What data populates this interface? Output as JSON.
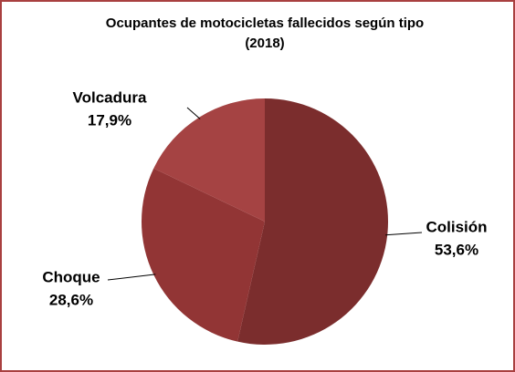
{
  "chart_data": {
    "type": "pie",
    "title": "Ocupantes de motocicletas fallecidos según tipo",
    "subtitle": "(2018)",
    "categories": [
      "Colisión",
      "Choque",
      "Volcadura"
    ],
    "values": [
      53.6,
      28.6,
      17.9
    ],
    "value_labels": [
      "53,6%",
      "28,6%",
      "17,9%"
    ],
    "colors": [
      "#7b2d2d",
      "#923535",
      "#a54343"
    ]
  }
}
